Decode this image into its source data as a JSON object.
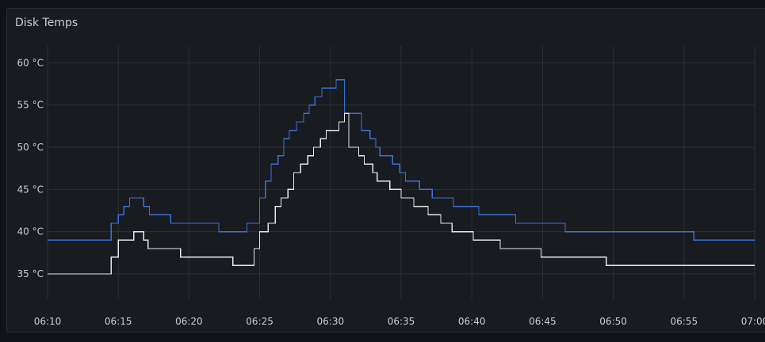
{
  "panel": {
    "title": "Disk Temps"
  },
  "chart_data": {
    "type": "line",
    "title": "Disk Temps",
    "xlabel": "",
    "ylabel": "",
    "x_unit": "time (HH:MM)",
    "y_unit": "°C",
    "ylim": [
      32,
      62
    ],
    "xlim": [
      "06:10",
      "07:00"
    ],
    "y_ticks": [
      "35 °C",
      "40 °C",
      "45 °C",
      "50 °C",
      "55 °C",
      "60 °C"
    ],
    "y_tick_values": [
      35,
      40,
      45,
      50,
      55,
      60
    ],
    "x_ticks": [
      "06:10",
      "06:15",
      "06:20",
      "06:25",
      "06:30",
      "06:35",
      "06:40",
      "06:45",
      "06:50",
      "06:55",
      "07:00"
    ],
    "grid": true,
    "legend": "none",
    "series": [
      {
        "color": "#3d71d9",
        "step": true,
        "points": [
          [
            "06:10",
            39
          ],
          [
            "06:14.5",
            41
          ],
          [
            "06:15",
            42
          ],
          [
            "06:15.4",
            43
          ],
          [
            "06:15.8",
            44
          ],
          [
            "06:16.8",
            43
          ],
          [
            "06:17.2",
            42
          ],
          [
            "06:18.7",
            41
          ],
          [
            "06:22.1",
            40
          ],
          [
            "06:24.1",
            41
          ],
          [
            "06:25",
            44
          ],
          [
            "06:25.4",
            46
          ],
          [
            "06:25.8",
            48
          ],
          [
            "06:26.3",
            49
          ],
          [
            "06:26.7",
            51
          ],
          [
            "06:27.1",
            52
          ],
          [
            "06:27.6",
            53
          ],
          [
            "06:28.1",
            54
          ],
          [
            "06:28.5",
            55
          ],
          [
            "06:28.9",
            56
          ],
          [
            "06:29.4",
            57
          ],
          [
            "06:30.4",
            58
          ],
          [
            "06:31",
            54
          ],
          [
            "06:32.2",
            52
          ],
          [
            "06:32.8",
            51
          ],
          [
            "06:33.2",
            50
          ],
          [
            "06:33.5",
            49
          ],
          [
            "06:34.4",
            48
          ],
          [
            "06:34.9",
            47
          ],
          [
            "06:35.3",
            46
          ],
          [
            "06:36.3",
            45
          ],
          [
            "06:37.2",
            44
          ],
          [
            "06:38.7",
            43
          ],
          [
            "06:40.5",
            42
          ],
          [
            "06:43.1",
            41
          ],
          [
            "06:46.6",
            40
          ],
          [
            "06:55.7",
            39
          ],
          [
            "07:00",
            39
          ]
        ]
      },
      {
        "color": "#e6e6f0",
        "step": true,
        "points": [
          [
            "06:10",
            35
          ],
          [
            "06:14.5",
            37
          ],
          [
            "06:15",
            39
          ],
          [
            "06:16.1",
            40
          ],
          [
            "06:16.8",
            39
          ],
          [
            "06:17.1",
            38
          ],
          [
            "06:19.4",
            37
          ],
          [
            "06:23.1",
            36
          ],
          [
            "06:24.6",
            38
          ],
          [
            "06:25",
            40
          ],
          [
            "06:25.6",
            41
          ],
          [
            "06:26.1",
            43
          ],
          [
            "06:26.5",
            44
          ],
          [
            "06:27",
            45
          ],
          [
            "06:27.4",
            47
          ],
          [
            "06:27.9",
            48
          ],
          [
            "06:28.4",
            49
          ],
          [
            "06:28.8",
            50
          ],
          [
            "06:29.3",
            51
          ],
          [
            "06:29.7",
            52
          ],
          [
            "06:30.6",
            53
          ],
          [
            "06:31",
            54
          ],
          [
            "06:31.3",
            50
          ],
          [
            "06:32",
            49
          ],
          [
            "06:32.4",
            48
          ],
          [
            "06:33",
            47
          ],
          [
            "06:33.3",
            46
          ],
          [
            "06:34.2",
            45
          ],
          [
            "06:35",
            44
          ],
          [
            "06:35.9",
            43
          ],
          [
            "06:36.9",
            42
          ],
          [
            "06:37.8",
            41
          ],
          [
            "06:38.6",
            40
          ],
          [
            "06:40.1",
            39
          ],
          [
            "06:42",
            38
          ],
          [
            "06:44.9",
            37
          ],
          [
            "06:49.5",
            36
          ],
          [
            "07:00",
            36
          ]
        ]
      }
    ]
  }
}
